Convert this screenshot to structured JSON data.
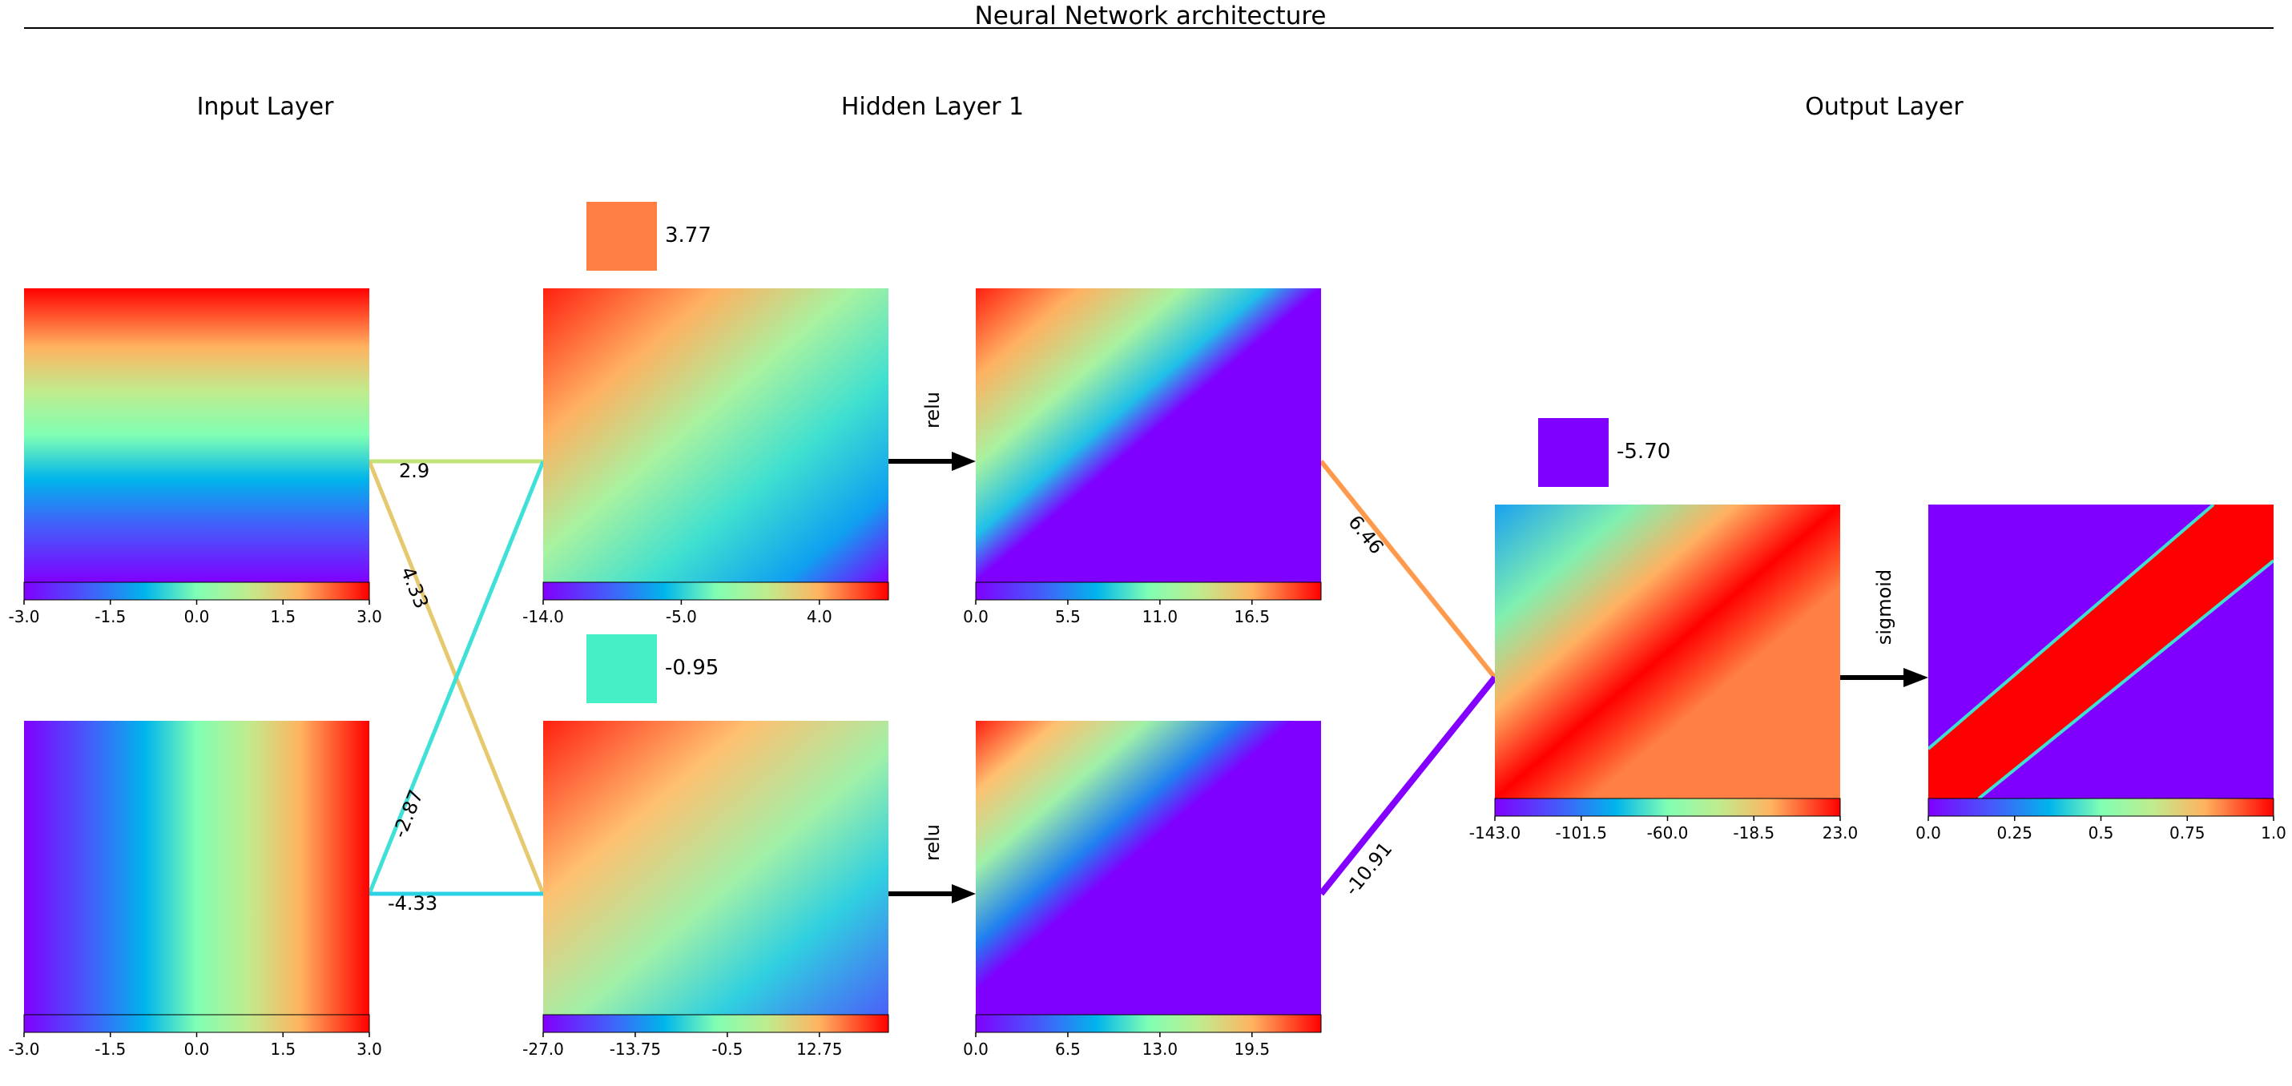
{
  "title": "Neural Network architecture",
  "layers": {
    "input": "Input Layer",
    "hidden1": "Hidden Layer 1",
    "output": "Output Layer"
  },
  "activations": {
    "relu_top": "relu",
    "relu_bottom": "relu",
    "sigmoid": "sigmoid"
  },
  "biases": [
    {
      "value": "3.77",
      "color": "#ff7f44"
    },
    {
      "value": "-0.95",
      "color": "#47efc6"
    },
    {
      "value": "-5.70",
      "color": "#7f00ff"
    }
  ],
  "weights": [
    {
      "value": "2.9",
      "color": "#c4e37b"
    },
    {
      "value": "4.33",
      "color": "#e6c96e"
    },
    {
      "value": "-2.87",
      "color": "#3ee0d8"
    },
    {
      "value": "-4.33",
      "color": "#2ad2e3"
    },
    {
      "value": "6.46",
      "color": "#ff9a4c"
    },
    {
      "value": "-10.91",
      "color": "#8300ff"
    }
  ],
  "colorbars": [
    {
      "id": "in1",
      "ticks": [
        "-3.0",
        "-1.5",
        "0.0",
        "1.5",
        "3.0"
      ]
    },
    {
      "id": "in2",
      "ticks": [
        "-3.0",
        "-1.5",
        "0.0",
        "1.5",
        "3.0"
      ]
    },
    {
      "id": "h1pre",
      "ticks": [
        "-14.0",
        "-5.0",
        "4.0"
      ]
    },
    {
      "id": "h2pre",
      "ticks": [
        "-27.0",
        "-13.75",
        "-0.5",
        "12.75"
      ]
    },
    {
      "id": "h1post",
      "ticks": [
        "0.0",
        "5.5",
        "11.0",
        "16.5"
      ]
    },
    {
      "id": "h2post",
      "ticks": [
        "0.0",
        "6.5",
        "13.0",
        "19.5"
      ]
    },
    {
      "id": "outpre",
      "ticks": [
        "-143.0",
        "-101.5",
        "-60.0",
        "-18.5",
        "23.0"
      ]
    },
    {
      "id": "outpost",
      "ticks": [
        "0.0",
        "0.25",
        "0.5",
        "0.75",
        "1.0"
      ]
    }
  ]
}
